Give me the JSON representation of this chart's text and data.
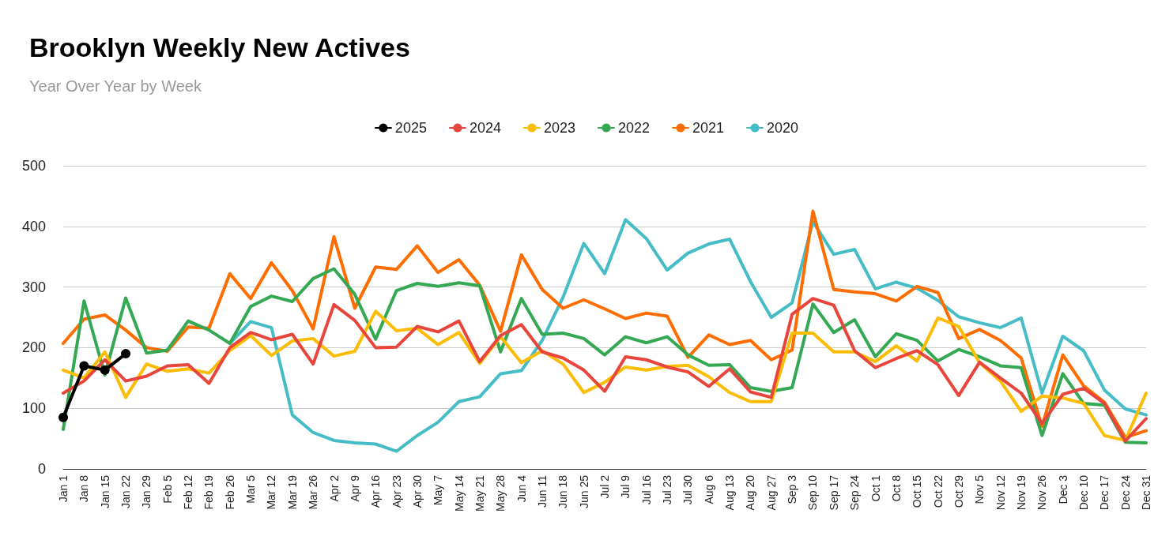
{
  "chart_data": {
    "type": "line",
    "title": "Brooklyn Weekly New Actives",
    "subtitle": "Year Over Year by Week",
    "categories": [
      "Jan 1",
      "Jan 8",
      "Jan 15",
      "Jan 22",
      "Jan 29",
      "Feb 5",
      "Feb 12",
      "Feb 19",
      "Feb 26",
      "Mar 5",
      "Mar 12",
      "Mar 19",
      "Mar 26",
      "Apr 2",
      "Apr 9",
      "Apr 16",
      "Apr 23",
      "Apr 30",
      "May 7",
      "May 14",
      "May 21",
      "May 28",
      "Jun 4",
      "Jun 11",
      "Jun 18",
      "Jun 25",
      "Jul 2",
      "Jul 9",
      "Jul 16",
      "Jul 23",
      "Jul 30",
      "Aug 6",
      "Aug 13",
      "Aug 20",
      "Aug 27",
      "Sep 3",
      "Sep 10",
      "Sep 17",
      "Sep 24",
      "Oct 1",
      "Oct 8",
      "Oct 15",
      "Oct 22",
      "Oct 29",
      "Nov 5",
      "Nov 12",
      "Nov 19",
      "Nov 26",
      "Dec 3",
      "Dec 10",
      "Dec 17",
      "Dec 24",
      "Dec 31"
    ],
    "series": [
      {
        "name": "2025",
        "color": "#000000",
        "marker": "circle",
        "values": [
          85,
          170,
          163,
          190,
          null,
          null,
          null,
          null,
          null,
          null,
          null,
          null,
          null,
          null,
          null,
          null,
          null,
          null,
          null,
          null,
          null,
          null,
          null,
          null,
          null,
          null,
          null,
          null,
          null,
          null,
          null,
          null,
          null,
          null,
          null,
          null,
          null,
          null,
          null,
          null,
          null,
          null,
          null,
          null,
          null,
          null,
          null,
          null,
          null,
          null,
          null,
          null,
          null
        ]
      },
      {
        "name": "2024",
        "color": "#e8453c",
        "marker": "none",
        "values": [
          125,
          145,
          180,
          145,
          153,
          170,
          172,
          141,
          200,
          225,
          213,
          222,
          173,
          271,
          245,
          200,
          201,
          235,
          226,
          244,
          177,
          220,
          238,
          193,
          183,
          163,
          128,
          185,
          180,
          168,
          160,
          136,
          165,
          127,
          118,
          255,
          281,
          270,
          195,
          167,
          182,
          195,
          172,
          121,
          176,
          150,
          125,
          75,
          123,
          133,
          108,
          46,
          83
        ]
      },
      {
        "name": "2023",
        "color": "#fbbc04",
        "marker": "none",
        "values": [
          163,
          150,
          193,
          118,
          173,
          161,
          165,
          158,
          195,
          220,
          187,
          211,
          215,
          186,
          194,
          260,
          228,
          232,
          205,
          225,
          174,
          218,
          175,
          195,
          173,
          126,
          143,
          168,
          163,
          169,
          171,
          152,
          126,
          111,
          111,
          224,
          224,
          193,
          193,
          177,
          203,
          178,
          249,
          235,
          175,
          145,
          95,
          120,
          117,
          108,
          55,
          47,
          125
        ]
      },
      {
        "name": "2022",
        "color": "#34a853",
        "marker": "none",
        "values": [
          65,
          277,
          155,
          282,
          191,
          196,
          244,
          229,
          207,
          268,
          285,
          276,
          314,
          330,
          288,
          214,
          294,
          306,
          301,
          307,
          302,
          193,
          281,
          222,
          224,
          215,
          188,
          218,
          208,
          218,
          188,
          171,
          172,
          134,
          128,
          134,
          272,
          225,
          246,
          185,
          223,
          212,
          178,
          197,
          185,
          170,
          167,
          55,
          157,
          108,
          105,
          44,
          43
        ]
      },
      {
        "name": "2021",
        "color": "#ff6d01",
        "marker": "none",
        "values": [
          207,
          247,
          254,
          229,
          200,
          194,
          234,
          232,
          322,
          281,
          340,
          294,
          231,
          383,
          265,
          333,
          329,
          368,
          324,
          345,
          303,
          227,
          353,
          296,
          265,
          279,
          264,
          248,
          257,
          252,
          184,
          221,
          205,
          212,
          180,
          196,
          425,
          296,
          292,
          289,
          277,
          301,
          291,
          215,
          230,
          212,
          183,
          70,
          188,
          137,
          110,
          52,
          63
        ]
      },
      {
        "name": "2020",
        "color": "#46bdc6",
        "marker": "none",
        "values": [
          null,
          null,
          null,
          null,
          null,
          null,
          null,
          null,
          207,
          243,
          233,
          89,
          60,
          47,
          43,
          41,
          29,
          55,
          77,
          111,
          119,
          157,
          162,
          212,
          283,
          372,
          322,
          411,
          380,
          328,
          356,
          371,
          379,
          309,
          250,
          274,
          408,
          354,
          362,
          297,
          308,
          298,
          278,
          251,
          241,
          233,
          249,
          125,
          219,
          195,
          130,
          99,
          89
        ]
      }
    ],
    "ylim": [
      0,
      500
    ],
    "yticks": [
      0,
      100,
      200,
      300,
      400,
      500
    ],
    "grid": "y",
    "legend": "top",
    "line_style": "solid"
  }
}
